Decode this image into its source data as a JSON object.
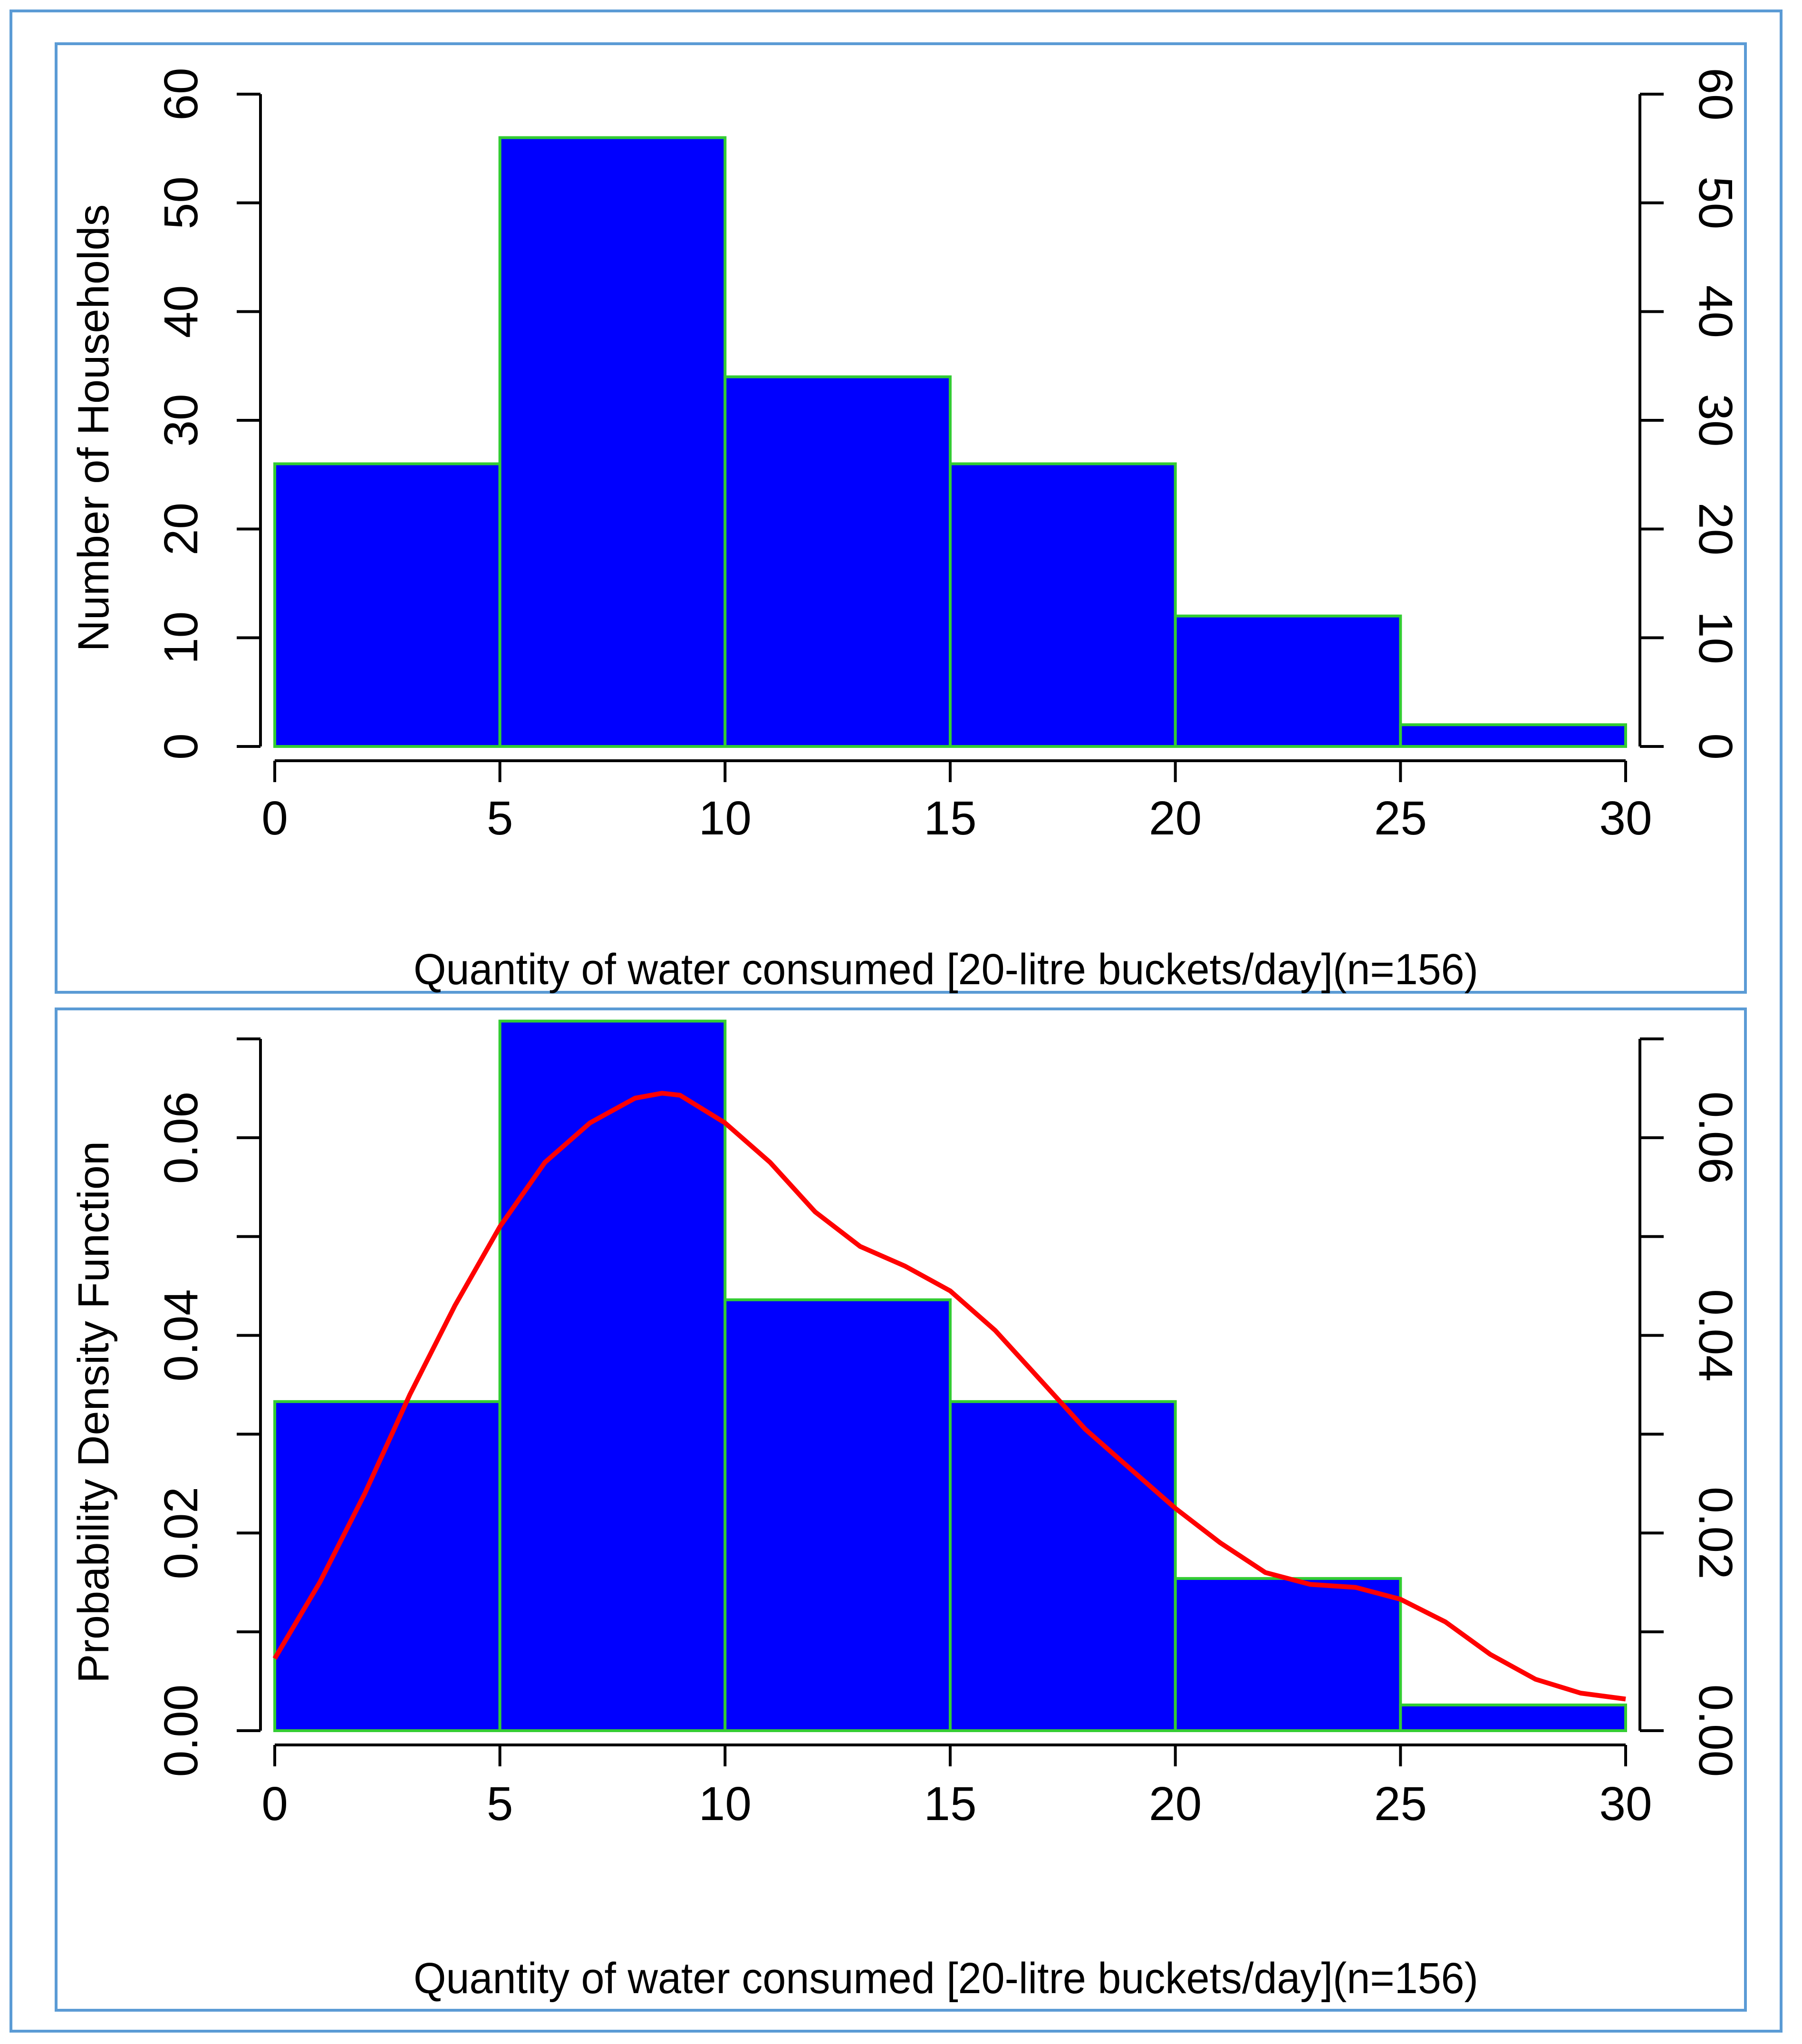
{
  "colors": {
    "frame": "#5b9bd5",
    "bar_fill": "#0000ff",
    "bar_edge": "#33cc33",
    "density_curve": "#ff0000",
    "axis": "#000000"
  },
  "chart_data": [
    {
      "type": "bar",
      "title": "",
      "xlabel": "Quantity of water consumed [20-litre buckets/day](n=156)",
      "ylabel": "Number of Households",
      "bin_edges": [
        0,
        5,
        10,
        15,
        20,
        25,
        30
      ],
      "values": [
        26,
        56,
        34,
        26,
        12,
        2
      ],
      "xlim": [
        0,
        30
      ],
      "ylim": [
        0,
        60
      ],
      "x_ticks": [
        "0",
        "5",
        "10",
        "15",
        "20",
        "25",
        "30"
      ],
      "y_ticks": [
        "0",
        "10",
        "20",
        "30",
        "40",
        "50",
        "60"
      ],
      "right_axis_ticks": [
        "0",
        "10",
        "20",
        "30",
        "40",
        "50",
        "60"
      ],
      "grid": false,
      "legend": "none"
    },
    {
      "type": "bar",
      "title": "",
      "xlabel": "Quantity of water consumed [20-litre buckets/day](n=156)",
      "ylabel": "Probability Density Function",
      "bin_edges": [
        0,
        5,
        10,
        15,
        20,
        25,
        30
      ],
      "values": [
        0.0333,
        0.0718,
        0.0436,
        0.0333,
        0.0154,
        0.0026
      ],
      "xlim": [
        0,
        30
      ],
      "ylim": [
        0,
        0.07
      ],
      "x_ticks": [
        "0",
        "5",
        "10",
        "15",
        "20",
        "25",
        "30"
      ],
      "y_ticks": [
        "0.00",
        "0.02",
        "0.04",
        "0.06"
      ],
      "right_axis_ticks": [
        "0.00",
        "0.02",
        "0.04",
        "0.06"
      ],
      "minor_tick_values": [
        0.01,
        0.03,
        0.05,
        0.07
      ],
      "density_curve": {
        "x": [
          0,
          1,
          2,
          3,
          4,
          5,
          6,
          7,
          8,
          8.6,
          9,
          10,
          11,
          12,
          13,
          14,
          15,
          16,
          17,
          18,
          19,
          20,
          21,
          22,
          23,
          24,
          25,
          26,
          27,
          28,
          29,
          30
        ],
        "y": [
          0.0073,
          0.015,
          0.024,
          0.034,
          0.043,
          0.051,
          0.0575,
          0.0615,
          0.064,
          0.0645,
          0.0643,
          0.0615,
          0.0575,
          0.0525,
          0.049,
          0.047,
          0.0445,
          0.0405,
          0.0355,
          0.0305,
          0.0265,
          0.0225,
          0.019,
          0.016,
          0.0148,
          0.0145,
          0.0133,
          0.011,
          0.0077,
          0.0052,
          0.0038,
          0.0032
        ]
      },
      "grid": false,
      "legend": "none"
    }
  ]
}
